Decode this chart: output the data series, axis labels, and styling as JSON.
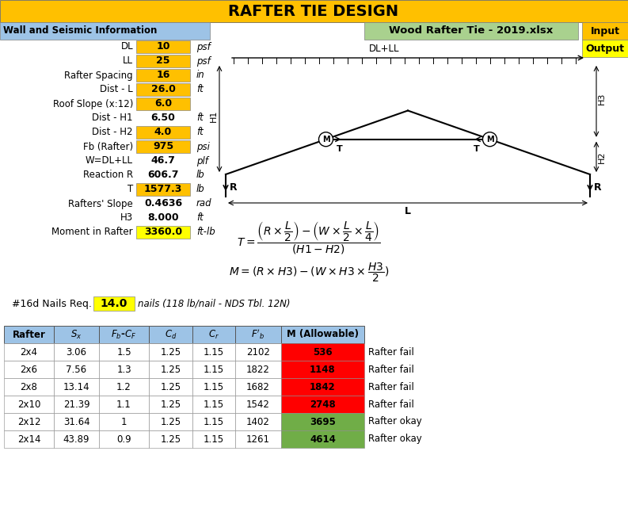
{
  "title": "RAFTER TIE DESIGN",
  "subtitle_left": "Wall and Seismic Information",
  "subtitle_right": "Wood Rafter Tie - 2019.xlsx",
  "input_rows": [
    {
      "label": "DL",
      "value": "10",
      "unit": "psf",
      "highlight": "orange"
    },
    {
      "label": "LL",
      "value": "25",
      "unit": "psf",
      "highlight": "orange"
    },
    {
      "label": "Rafter Spacing",
      "value": "16",
      "unit": "in",
      "highlight": "orange"
    },
    {
      "label": "Dist - L",
      "value": "26.0",
      "unit": "ft",
      "highlight": "orange"
    },
    {
      "label": "Roof Slope (x:12)",
      "value": "6.0",
      "unit": "",
      "highlight": "orange"
    },
    {
      "label": "Dist - H1",
      "value": "6.50",
      "unit": "ft",
      "highlight": "none"
    },
    {
      "label": "Dist - H2",
      "value": "4.0",
      "unit": "ft",
      "highlight": "orange"
    },
    {
      "label": "Fb (Rafter)",
      "value": "975",
      "unit": "psi",
      "highlight": "orange"
    },
    {
      "label": "W=DL+LL",
      "value": "46.7",
      "unit": "plf",
      "highlight": "none"
    },
    {
      "label": "Reaction R",
      "value": "606.7",
      "unit": "lb",
      "highlight": "none"
    },
    {
      "label": "T",
      "value": "1577.3",
      "unit": "lb",
      "highlight": "orange"
    },
    {
      "label": "Rafters' Slope",
      "value": "0.4636",
      "unit": "rad",
      "highlight": "none"
    },
    {
      "label": "H3",
      "value": "8.000",
      "unit": "ft",
      "highlight": "none"
    },
    {
      "label": "Moment in Rafter",
      "value": "3360.0",
      "unit": "ft-lb",
      "highlight": "yellow"
    }
  ],
  "nails_req": "14.0",
  "nails_text": "nails (118 lb/nail - NDS Tbl. 12N)",
  "table_data": [
    [
      "2x4",
      "3.06",
      "1.5",
      "1.25",
      "1.15",
      "2102",
      "536",
      "Rafter fail",
      "red"
    ],
    [
      "2x6",
      "7.56",
      "1.3",
      "1.25",
      "1.15",
      "1822",
      "1148",
      "Rafter fail",
      "red"
    ],
    [
      "2x8",
      "13.14",
      "1.2",
      "1.25",
      "1.15",
      "1682",
      "1842",
      "Rafter fail",
      "red"
    ],
    [
      "2x10",
      "21.39",
      "1.1",
      "1.25",
      "1.15",
      "1542",
      "2748",
      "Rafter fail",
      "red"
    ],
    [
      "2x12",
      "31.64",
      "1",
      "1.25",
      "1.15",
      "1402",
      "3695",
      "Rafter okay",
      "green"
    ],
    [
      "2x14",
      "43.89",
      "0.9",
      "1.25",
      "1.15",
      "1261",
      "4614",
      "Rafter okay",
      "green"
    ]
  ],
  "colors": {
    "title_bg": "#FFC000",
    "header_left_bg": "#9DC3E6",
    "header_right_bg": "#A9D18E",
    "orange_highlight": "#FFC000",
    "yellow_highlight": "#FFFF00",
    "table_header_bg": "#9DC3E6",
    "red_cell": "#FF0000",
    "green_cell": "#70AD47"
  }
}
